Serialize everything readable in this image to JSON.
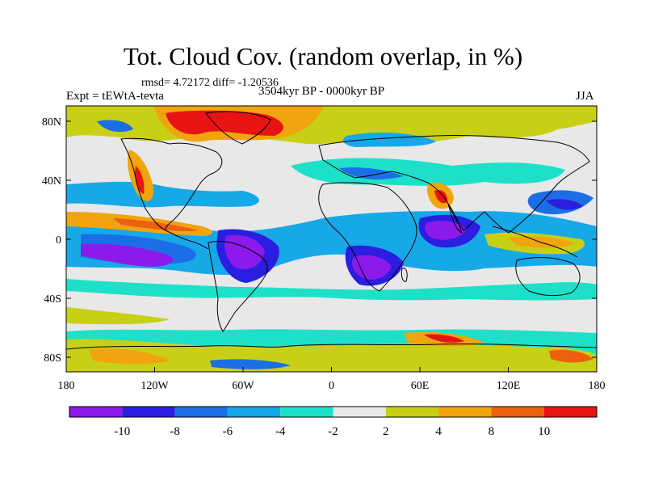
{
  "title": "Tot. Cloud Cov. (random overlap, in %)",
  "stats": "rmsd= 4.72172  diff= -1.20536",
  "expt": "Expt = tEWtA-tevta",
  "period": "3504kyr BP - 0000kyr BP",
  "season": "JJA",
  "lat_ticks": [
    "80N",
    "40N",
    "0",
    "40S",
    "80S"
  ],
  "lon_ticks": [
    "180",
    "120W",
    "60W",
    "0",
    "60E",
    "120E",
    "180"
  ],
  "colorbar": {
    "labels": [
      "-10",
      "-8",
      "-6",
      "-4",
      "-2",
      "2",
      "4",
      "8",
      "10"
    ],
    "colors": [
      "#8c1aeb",
      "#2b1ee0",
      "#1c6ee6",
      "#17a8e8",
      "#1ee0c8",
      "#e8e8e8",
      "#c8d016",
      "#f0a40e",
      "#ec6010",
      "#e81414"
    ]
  },
  "chart_data": {
    "type": "heatmap",
    "title": "Tot. Cloud Cov. (random overlap, in %)",
    "xlim": [
      -180,
      180
    ],
    "ylim": [
      -90,
      90
    ],
    "levels": [
      -10,
      -8,
      -6,
      -4,
      -2,
      2,
      4,
      8,
      10
    ],
    "colors": {
      "lt_m10": "#8c1aeb",
      "m10_m8": "#2b1ee0",
      "m8_m6": "#1c6ee6",
      "m6_m4": "#17a8e8",
      "m4_m2": "#1ee0c8",
      "m2_2": "#e8e8e8",
      "2_4": "#c8d016",
      "4_8": "#f0a40e",
      "8_10": "#ec6010",
      "gt_10": "#e81414"
    },
    "features": [
      {
        "lon": -120,
        "lat": -10,
        "value": -11
      },
      {
        "lon": -70,
        "lat": -5,
        "value": -11
      },
      {
        "lon": 25,
        "lat": -15,
        "value": -11
      },
      {
        "lon": 80,
        "lat": 10,
        "value": -10
      },
      {
        "lon": 150,
        "lat": 25,
        "value": -7
      },
      {
        "lon": -160,
        "lat": 5,
        "value": 8
      },
      {
        "lon": -120,
        "lat": 40,
        "value": 7
      },
      {
        "lon": 75,
        "lat": 35,
        "value": 9
      },
      {
        "lon": -60,
        "lat": 80,
        "value": 11
      },
      {
        "lon": -50,
        "lat": 78,
        "value": 9
      },
      {
        "lon": 140,
        "lat": 0,
        "value": 6
      },
      {
        "lon": 60,
        "lat": -75,
        "value": 9
      },
      {
        "lon": -150,
        "lat": -82,
        "value": 8
      },
      {
        "lon": 165,
        "lat": -82,
        "value": 8
      }
    ]
  }
}
